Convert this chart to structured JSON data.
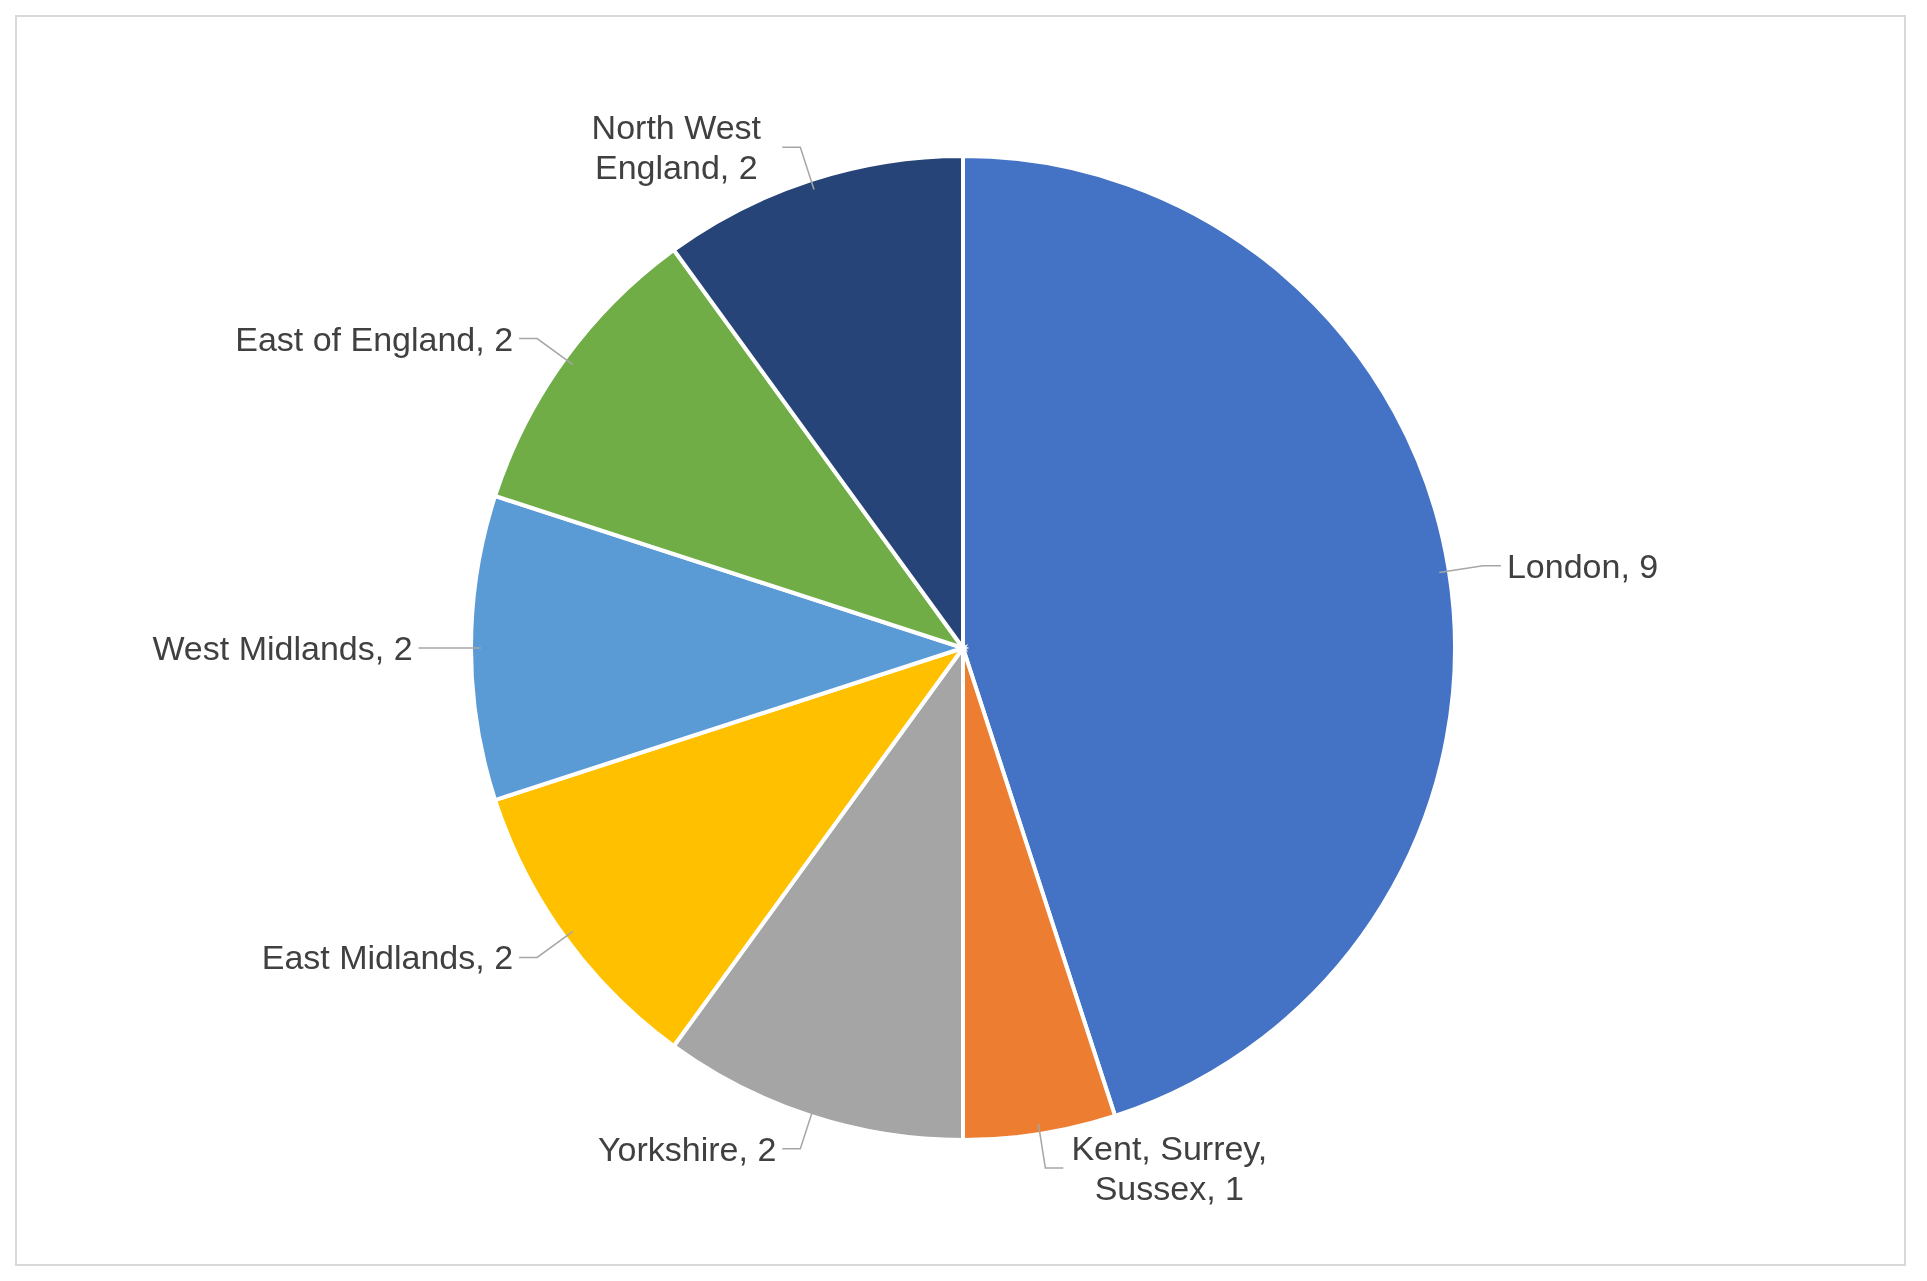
{
  "chart_data": {
    "type": "pie",
    "categories": [
      "London",
      "Kent, Surrey, Sussex",
      "Yorkshire",
      "East Midlands",
      "West Midlands",
      "East of England",
      "North West England"
    ],
    "values": [
      9,
      1,
      2,
      2,
      2,
      2,
      2
    ],
    "colors": [
      "#4472c4",
      "#ed7d31",
      "#a5a5a5",
      "#ffc000",
      "#5b9bd5",
      "#70ad47",
      "#264478"
    ],
    "value_labels": [
      ", 9",
      ", 1",
      ", 2",
      ", 2",
      ", 2",
      ", 2",
      ", 2"
    ]
  }
}
